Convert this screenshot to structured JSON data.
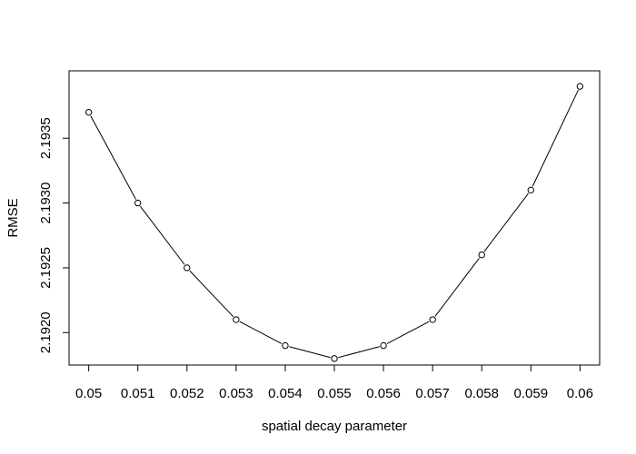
{
  "chart_data": {
    "type": "line",
    "title": "",
    "xlabel": "spatial decay parameter",
    "ylabel": "RMSE",
    "x": [
      0.05,
      0.051,
      0.052,
      0.053,
      0.054,
      0.055,
      0.056,
      0.057,
      0.058,
      0.059,
      0.06
    ],
    "series": [
      {
        "values": [
          2.1937,
          2.193,
          2.1925,
          2.1921,
          2.1919,
          2.1918,
          2.1919,
          2.1921,
          2.1926,
          2.1931,
          2.1939
        ],
        "color": "#000000",
        "marker": "open-circle"
      }
    ],
    "xticks": [
      "0.05",
      "0.051",
      "0.052",
      "0.053",
      "0.054",
      "0.055",
      "0.056",
      "0.057",
      "0.058",
      "0.059",
      "0.06"
    ],
    "yticks": [
      "2.1920",
      "2.1925",
      "2.1930",
      "2.1935"
    ],
    "xlim": [
      0.0496,
      0.0604
    ],
    "ylim": [
      2.19175,
      2.19402
    ],
    "grid": false,
    "legend": "none"
  }
}
